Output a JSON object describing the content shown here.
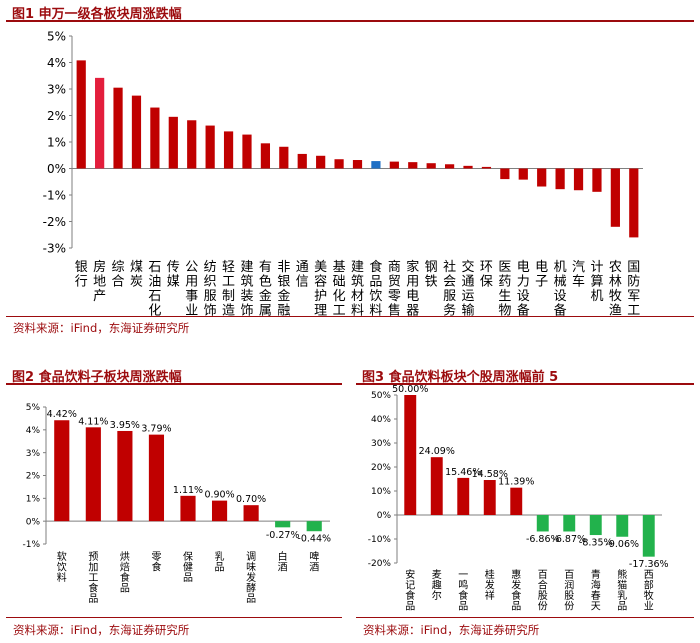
{
  "figures": {
    "fig1": {
      "title": "图1  申万一级各板块周涨跌幅"
    },
    "fig2": {
      "title": "图2  食品饮料子板块周涨跌幅"
    },
    "fig3": {
      "title": "图3  食品饮料板块个股周涨幅前 5"
    }
  },
  "sources": {
    "fig1": "资料来源：iFind，东海证券研究所",
    "fig2": "资料来源：iFind，东海证券研究所",
    "fig3": "资料来源：iFind，东海证券研究所"
  },
  "colors": {
    "accent": "#9c0b0e",
    "bar_red": "#c00000",
    "bar_pink": "#e31e3c",
    "bar_blue": "#1f6fc5",
    "bar_green": "#22b24c"
  },
  "chart_data": [
    {
      "type": "bar",
      "title": "申万一级各板块周涨跌幅",
      "ylim": [
        -3,
        5
      ],
      "yticks": [
        "-3%",
        "-2%",
        "-1%",
        "0%",
        "1%",
        "2%",
        "3%",
        "4%",
        "5%"
      ],
      "categories": [
        "银行",
        "房地产",
        "综合",
        "煤炭",
        "石油石化",
        "传媒",
        "公用事业",
        "纺织服饰",
        "轻工制造",
        "建筑装饰",
        "有色金属",
        "非银金融",
        "通信",
        "美容护理",
        "基础化工",
        "建筑材料",
        "食品饮料",
        "商贸零售",
        "家用电器",
        "钢铁",
        "社会服务",
        "交通运输",
        "环保",
        "医药生物",
        "电力设备",
        "电子",
        "机械设备",
        "汽车",
        "计算机",
        "农林牧渔",
        "国防军工"
      ],
      "values": [
        4.08,
        3.42,
        3.05,
        2.75,
        2.3,
        1.95,
        1.82,
        1.62,
        1.4,
        1.28,
        0.95,
        0.82,
        0.55,
        0.48,
        0.35,
        0.32,
        0.28,
        0.26,
        0.24,
        0.2,
        0.16,
        0.1,
        0.06,
        -0.4,
        -0.42,
        -0.68,
        -0.78,
        -0.82,
        -0.88,
        -2.2,
        -2.6
      ],
      "highlight": {
        "房地产": "pink",
        "食品饮料": "blue"
      }
    },
    {
      "type": "bar",
      "title": "食品饮料子板块周涨跌幅",
      "ylim": [
        -1,
        5
      ],
      "yticks": [
        "-1%",
        "0%",
        "1%",
        "2%",
        "3%",
        "4%",
        "5%"
      ],
      "categories": [
        "软饮料",
        "预加工食品",
        "烘焙食品",
        "零食",
        "保健品",
        "乳品",
        "调味发酵品",
        "白酒",
        "啤酒"
      ],
      "values": [
        4.42,
        4.11,
        3.95,
        3.79,
        1.11,
        0.9,
        0.7,
        -0.27,
        -0.44
      ],
      "labels": [
        "4.42%",
        "4.11%",
        "3.95%",
        "3.79%",
        "1.11%",
        "0.90%",
        "0.70%",
        "-0.27%",
        "-0.44%"
      ]
    },
    {
      "type": "bar",
      "title": "食品饮料板块个股周涨幅前 5",
      "ylim": [
        -20,
        50
      ],
      "yticks": [
        "-20%",
        "-10%",
        "0%",
        "10%",
        "20%",
        "30%",
        "40%",
        "50%"
      ],
      "categories": [
        "安记食品",
        "麦趣尔",
        "一鸣食品",
        "桂发祥",
        "惠发食品",
        "百合股份",
        "百润股份",
        "青海春天",
        "熊猫乳品",
        "西部牧业"
      ],
      "values": [
        50.0,
        24.09,
        15.46,
        14.58,
        11.39,
        -6.86,
        -6.87,
        -8.35,
        -9.06,
        -17.36
      ],
      "labels": [
        "50.00%",
        "24.09%",
        "15.46%",
        "14.58%",
        "11.39%",
        "-6.86%",
        "-6.87%",
        "-8.35%",
        "-9.06%",
        "-17.36%"
      ]
    }
  ]
}
